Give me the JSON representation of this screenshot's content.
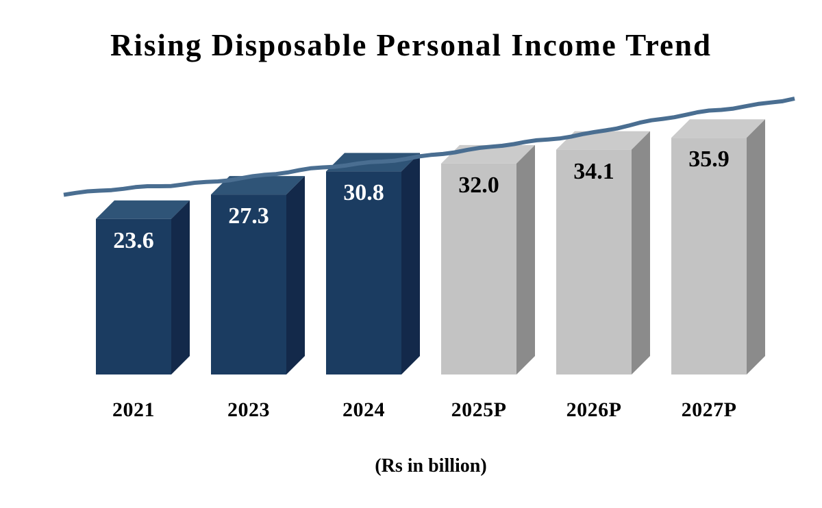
{
  "title": "Rising Disposable Personal Income Trend",
  "caption": "(Rs in billion)",
  "chart_data": {
    "type": "bar",
    "style": "3d-column",
    "title": "Rising Disposable Personal Income Trend",
    "xlabel": "(Rs in billion)",
    "ylabel": "",
    "categories": [
      "2021",
      "2023",
      "2024",
      "2025P",
      "2026P",
      "2027P"
    ],
    "values": [
      23.6,
      27.3,
      30.8,
      32.0,
      34.1,
      35.9
    ],
    "value_labels": [
      "23.6",
      "27.3",
      "30.8",
      "32.0",
      "34.1",
      "35.9"
    ],
    "groups": [
      "actual",
      "actual",
      "actual",
      "projected",
      "projected",
      "projected"
    ],
    "ylim": [
      0,
      57
    ],
    "grid": false,
    "legend": false,
    "trend_line": {
      "present": true,
      "color": "#4a6e91",
      "description": "hand-drawn rising trend line across bar tops"
    }
  },
  "colors": {
    "actual_front": "#1b3c61",
    "actual_top": "#2f5477",
    "actual_side": "#13294a",
    "projected_front": "#c3c3c3",
    "projected_top": "#cbcbcb",
    "projected_side": "#8b8b8b",
    "value_text_actual": "#ffffff",
    "value_text_projected": "#000000",
    "background": "#ffffff",
    "text": "#000000"
  }
}
